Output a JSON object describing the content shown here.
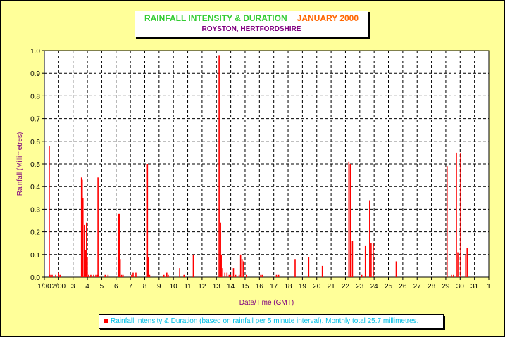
{
  "chart_data": {
    "type": "bar",
    "title": "RAINFALL INTENSITY & DURATION",
    "title_month": "JANUARY 2000",
    "subtitle": "ROYSTON, HERTFORDSHIRE",
    "xlabel": "Date/Time (GMT)",
    "ylabel": "Rainfall (Millimetres)",
    "ylim": [
      0,
      1.0
    ],
    "yticks": [
      "0.0",
      "0.1",
      "0.2",
      "0.3",
      "0.4",
      "0.5",
      "0.6",
      "0.7",
      "0.8",
      "0.9",
      "1.0"
    ],
    "xticks": [
      "1/00",
      "2/00",
      "3",
      "4",
      "5",
      "6",
      "7",
      "8",
      "9",
      "10",
      "11",
      "12",
      "13",
      "14",
      "15",
      "16",
      "17",
      "18",
      "19",
      "20",
      "21",
      "22",
      "23",
      "24",
      "25",
      "26",
      "27",
      "28",
      "29",
      "30",
      "31",
      "1"
    ],
    "grid": true,
    "legend": "Rainfall Intensity & Duration (based on rainfall per 5 minute interval). Monthly total 25.7 millimetres.",
    "legend_position": "bottom",
    "series": [
      {
        "color": "#ff0000",
        "points": [
          [
            1.3,
            0.58
          ],
          [
            1.35,
            0.01
          ],
          [
            1.5,
            0.01
          ],
          [
            1.75,
            0.01
          ],
          [
            1.95,
            0.02
          ],
          [
            2.05,
            0.01
          ],
          [
            3.55,
            0.44
          ],
          [
            3.6,
            0.43
          ],
          [
            3.65,
            0.35
          ],
          [
            3.75,
            0.23
          ],
          [
            3.8,
            0.1
          ],
          [
            3.85,
            0.12
          ],
          [
            3.9,
            0.24
          ],
          [
            3.95,
            0.09
          ],
          [
            4.05,
            0.01
          ],
          [
            4.2,
            0.01
          ],
          [
            4.4,
            0.01
          ],
          [
            4.55,
            0.01
          ],
          [
            4.65,
            0.01
          ],
          [
            4.7,
            0.44
          ],
          [
            4.75,
            0.01
          ],
          [
            5.2,
            0.01
          ],
          [
            5.4,
            0.01
          ],
          [
            6.15,
            0.28
          ],
          [
            6.2,
            0.28
          ],
          [
            6.25,
            0.08
          ],
          [
            6.35,
            0.01
          ],
          [
            6.45,
            0.01
          ],
          [
            7.05,
            0.01
          ],
          [
            7.15,
            0.02
          ],
          [
            7.3,
            0.02
          ],
          [
            7.4,
            0.02
          ],
          [
            8.15,
            0.5
          ],
          [
            8.2,
            0.09
          ],
          [
            8.3,
            0.01
          ],
          [
            9.3,
            0.01
          ],
          [
            9.5,
            0.02
          ],
          [
            9.6,
            0.01
          ],
          [
            10.4,
            0.04
          ],
          [
            10.7,
            0.01
          ],
          [
            11.35,
            0.1
          ],
          [
            13.15,
            0.98
          ],
          [
            13.25,
            0.24
          ],
          [
            13.3,
            0.1
          ],
          [
            13.4,
            0.04
          ],
          [
            13.55,
            0.02
          ],
          [
            13.7,
            0.02
          ],
          [
            13.85,
            0.01
          ],
          [
            13.95,
            0.01
          ],
          [
            14.15,
            0.04
          ],
          [
            14.3,
            0.01
          ],
          [
            14.55,
            0.01
          ],
          [
            14.65,
            0.1
          ],
          [
            14.75,
            0.08
          ],
          [
            14.85,
            0.07
          ],
          [
            15.05,
            0.01
          ],
          [
            16.05,
            0.01
          ],
          [
            16.15,
            0.01
          ],
          [
            17.15,
            0.01
          ],
          [
            17.3,
            0.01
          ],
          [
            18.45,
            0.08
          ],
          [
            19.4,
            0.09
          ],
          [
            20.35,
            0.05
          ],
          [
            22.2,
            0.51
          ],
          [
            22.3,
            0.5
          ],
          [
            22.45,
            0.16
          ],
          [
            23.1,
            0.01
          ],
          [
            23.35,
            0.14
          ],
          [
            23.65,
            0.34
          ],
          [
            23.75,
            0.15
          ],
          [
            23.9,
            0.15
          ],
          [
            25.5,
            0.07
          ],
          [
            29.05,
            0.49
          ],
          [
            29.35,
            0.01
          ],
          [
            29.5,
            0.01
          ],
          [
            29.7,
            0.55
          ],
          [
            29.8,
            0.11
          ],
          [
            30.0,
            0.55
          ],
          [
            30.35,
            0.1
          ],
          [
            30.45,
            0.13
          ]
        ]
      }
    ]
  }
}
